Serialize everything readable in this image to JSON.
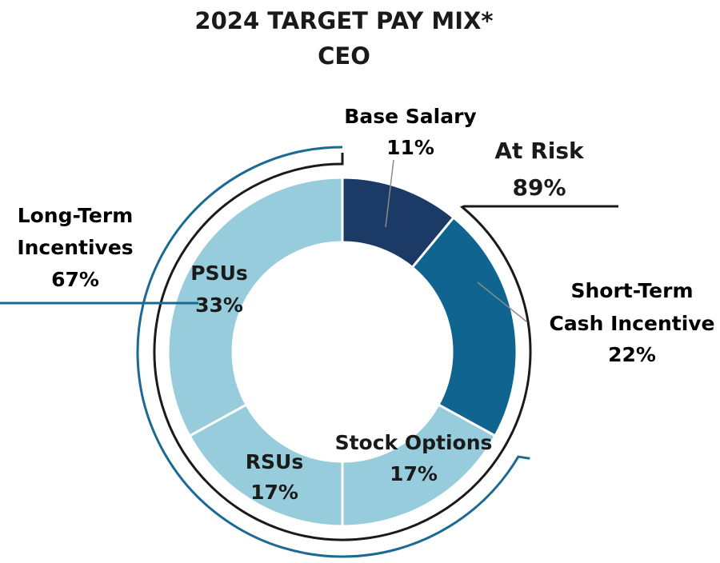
{
  "chart_data": {
    "type": "pie",
    "title": "2024 TARGET PAY MIX*",
    "subtitle": "CEO",
    "slices": [
      {
        "label": "Base Salary",
        "value": 11,
        "value_label": "11%",
        "color": "#1b3a66"
      },
      {
        "label": "Short-Term Cash Incentive",
        "value": 22,
        "value_label": "22%",
        "color": "#0f6590"
      },
      {
        "label": "Stock Options",
        "value": 17,
        "value_label": "17%",
        "color": "#96ccdb"
      },
      {
        "label": "RSUs",
        "value": 17,
        "value_label": "17%",
        "color": "#96ccdb"
      },
      {
        "label": "PSUs",
        "value": 33,
        "value_label": "33%",
        "color": "#96ccdb"
      }
    ],
    "groups": [
      {
        "label": "At Risk",
        "value": 89,
        "value_label": "89%",
        "color": "#1a1a1a"
      },
      {
        "label": "Long-Term Incentives",
        "value": 67,
        "value_label": "67%",
        "color": "#1b6a93"
      }
    ],
    "text": {
      "base_line1": "Base Salary",
      "base_line2": "11%",
      "risk_line1": "At Risk",
      "risk_line2": "89%",
      "sti_line1": "Short-Term",
      "sti_line2": "Cash Incentive",
      "sti_line3": "22%",
      "lti_line1": "Long-Term",
      "lti_line2": "Incentives",
      "lti_line3": "67%",
      "psu_line1": "PSUs",
      "psu_line2": "33%",
      "rsu_line1": "RSUs",
      "rsu_line2": "17%",
      "opt_line1": "Stock Options",
      "opt_line2": "17%"
    },
    "colors": {
      "label_blue": "#1b6a93",
      "bracket_dark": "#1a1a1a",
      "bracket_blue": "#1b6a93"
    }
  }
}
